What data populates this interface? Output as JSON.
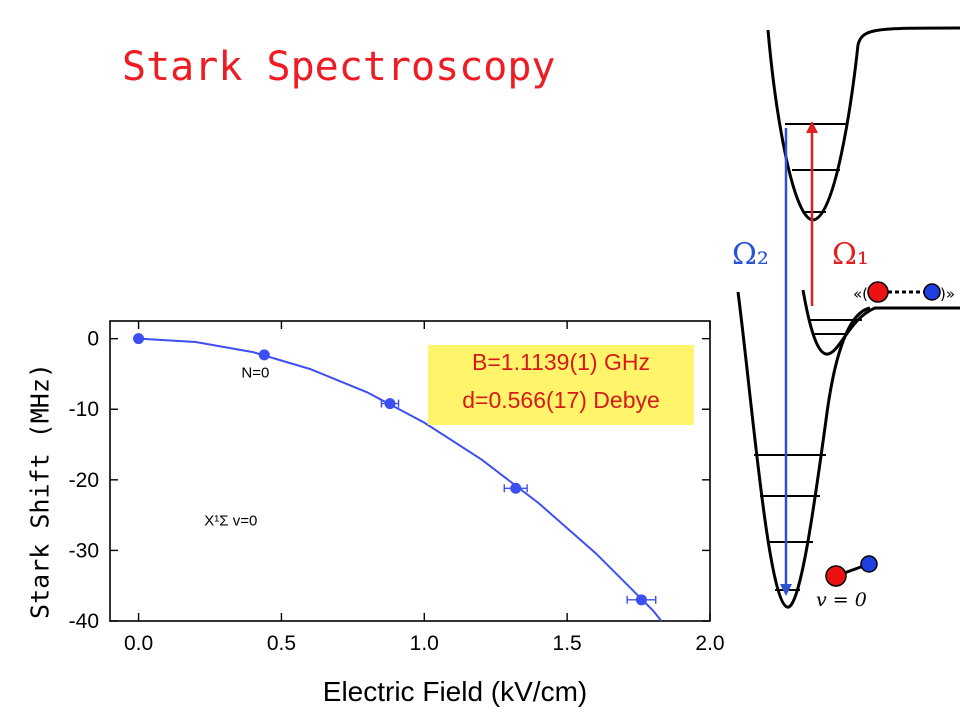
{
  "slide": {
    "title": "Stark Spectroscopy"
  },
  "chart_data": {
    "type": "scatter",
    "xlabel": "Electric Field (kV/cm)",
    "ylabel": "Stark Shift (MHz)",
    "xlim": [
      -0.1,
      2.0
    ],
    "ylim": [
      -40,
      2.5
    ],
    "xticks": [
      "0.0",
      "0.5",
      "1.0",
      "1.5",
      "2.0"
    ],
    "yticks": [
      "0",
      "-10",
      "-20",
      "-30",
      "-40"
    ],
    "series": [
      {
        "x": [
          0.0,
          0.44,
          0.88,
          1.32,
          1.76
        ],
        "y": [
          0.0,
          -2.3,
          -9.2,
          -21.2,
          -37.0
        ],
        "xerr": [
          0.0,
          0.0,
          0.03,
          0.04,
          0.05
        ],
        "marker": "circle",
        "color": "#3d4ff0"
      }
    ],
    "fit_curve": {
      "color": "#3d4ff0",
      "x": [
        0.0,
        0.2,
        0.4,
        0.6,
        0.8,
        1.0,
        1.2,
        1.4,
        1.6,
        1.8,
        1.83
      ],
      "y": [
        0.0,
        -0.47,
        -1.9,
        -4.3,
        -7.6,
        -11.9,
        -17.1,
        -23.3,
        -30.4,
        -38.5,
        -40.0
      ]
    },
    "annotations": [
      {
        "text": "N=0",
        "x": 0.36,
        "y": -5.5
      },
      {
        "text": "X¹Σ v=0",
        "x": 0.23,
        "y": -26.5
      }
    ],
    "fit_parameters": [
      "B=1.1139(1) GHz",
      "d=0.566(17) Debye"
    ],
    "grid": false,
    "fit_label_background": "#fff46a",
    "fit_label_color": "#d61a1a"
  },
  "diagram": {
    "labels": {
      "omega2": "Ω₂",
      "omega1": "Ω₁",
      "v0": "v = 0"
    },
    "colors": {
      "omega2": "#2a52d4",
      "omega1": "#e02020",
      "atom_red": "#ee1111",
      "atom_blue": "#1f3fe0"
    }
  }
}
